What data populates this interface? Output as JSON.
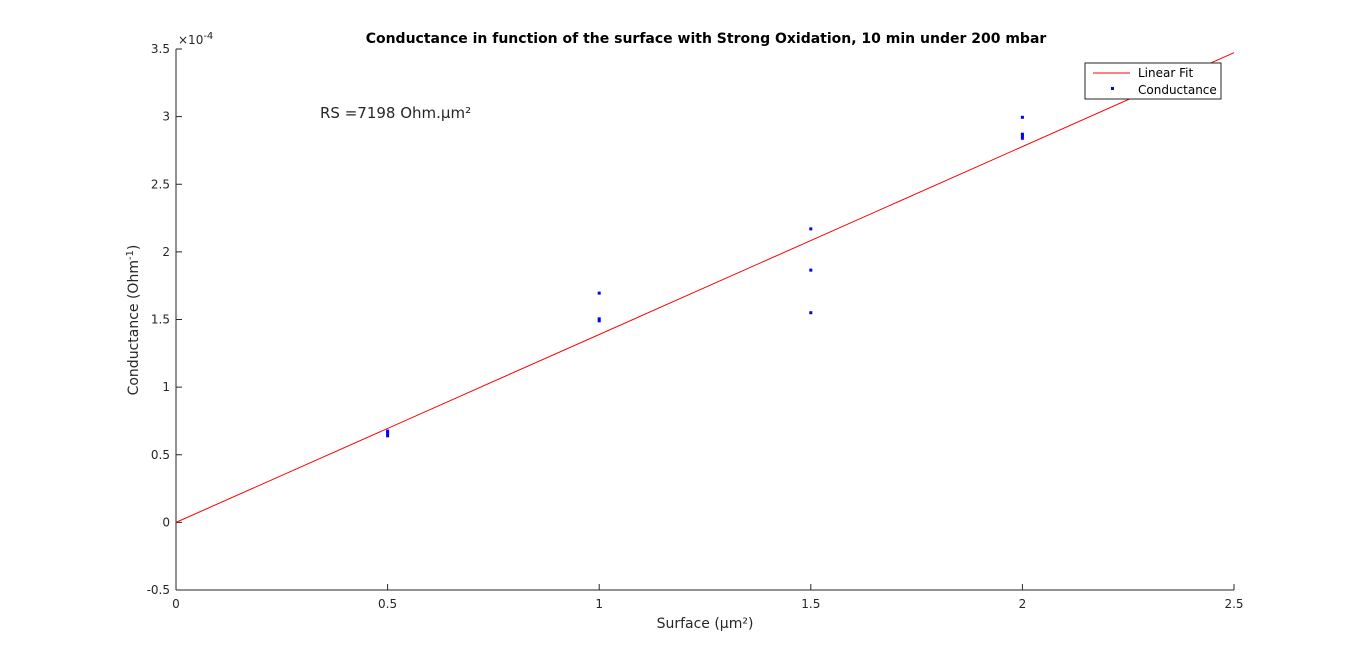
{
  "chart_data": {
    "type": "scatter",
    "title": "Conductance in function of the surface with Strong Oxidation, 10 min under 200 mbar",
    "xlabel": "Surface (µm²)",
    "ylabel_main": "Conductance (Ohm",
    "ylabel_sup": "-1",
    "ylabel_close": ")",
    "y_multiplier_base": "×10",
    "y_multiplier_exp": "-4",
    "xlim": [
      0,
      2.5
    ],
    "ylim": [
      -0.5,
      3.5
    ],
    "x_ticks": [
      0,
      0.5,
      1,
      1.5,
      2,
      2.5
    ],
    "x_tick_labels": [
      "0",
      "0.5",
      "1",
      "1.5",
      "2",
      "2.5"
    ],
    "y_ticks": [
      -0.5,
      0,
      0.5,
      1,
      1.5,
      2,
      2.5,
      3,
      3.5
    ],
    "y_tick_labels": [
      "-0.5",
      "0",
      "0.5",
      "1",
      "1.5",
      "2",
      "2.5",
      "3",
      "3.5"
    ],
    "grid": false,
    "legend_position": "top-right",
    "annotation": "RS =7198 Ohm.µm²",
    "series": [
      {
        "name": "Linear Fit",
        "kind": "line",
        "color": "#ff0000",
        "x": [
          0,
          2.5
        ],
        "y": [
          0,
          3.473
        ]
      },
      {
        "name": "Conductance",
        "kind": "points",
        "color": "#0000ff",
        "x": [
          0.5,
          0.5,
          0.5,
          1,
          1,
          1,
          1.5,
          1.5,
          1.5,
          2,
          2,
          2,
          2
        ],
        "y": [
          0.64,
          0.66,
          0.675,
          1.49,
          1.505,
          1.695,
          1.55,
          1.865,
          2.17,
          2.84,
          2.86,
          2.87,
          2.995
        ]
      }
    ]
  }
}
